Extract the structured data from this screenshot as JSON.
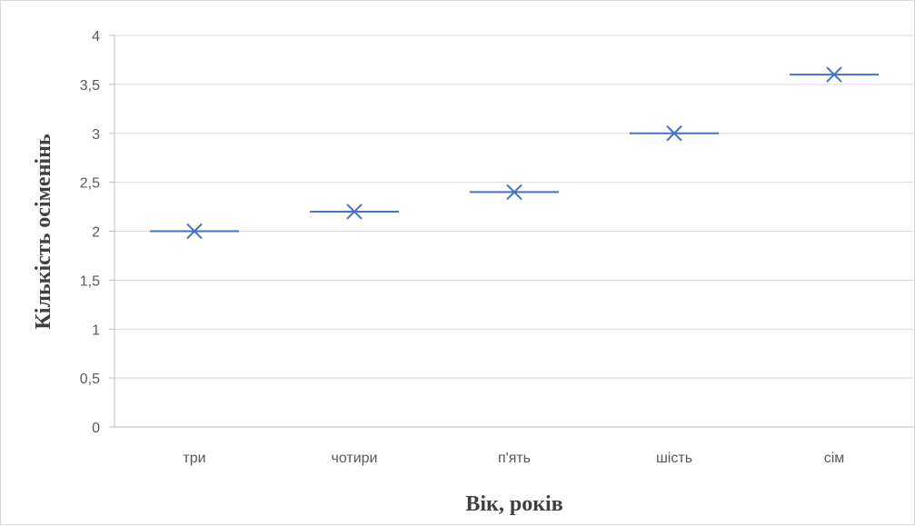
{
  "chart_data": {
    "type": "box",
    "title": "",
    "xlabel": "Вік, років",
    "ylabel": "Кількість осіменінь",
    "categories": [
      "три",
      "чотири",
      "п'ять",
      "шість",
      "сім"
    ],
    "ylim": [
      0,
      4
    ],
    "yticks": [
      0,
      0.5,
      1,
      1.5,
      2,
      2.5,
      3,
      3.5,
      4
    ],
    "ytick_labels": [
      "0",
      "0,5",
      "1",
      "1,5",
      "2",
      "2,5",
      "3",
      "3,5",
      "4"
    ],
    "series": [
      {
        "median": [
          2.0,
          2.2,
          2.4,
          3.0,
          3.6
        ],
        "mean": [
          2.0,
          2.2,
          2.4,
          3.0,
          3.6
        ]
      }
    ],
    "grid": true,
    "legend": "none",
    "colors": {
      "series": "#4472c4",
      "grid": "#d9d9d9",
      "axis": "#bfbfbf",
      "text": "#595959"
    }
  }
}
